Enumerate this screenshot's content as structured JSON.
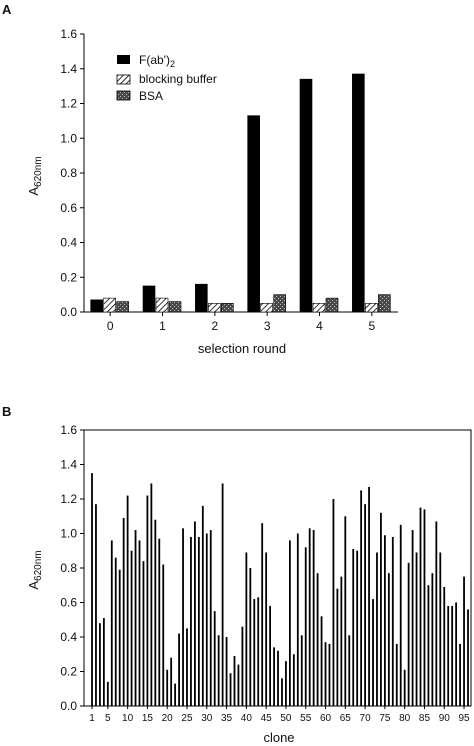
{
  "chart_data": [
    {
      "panel_label": "A",
      "type": "bar",
      "xlabel": "selection round",
      "ylabel_main": "A",
      "ylabel_sub": "620nm",
      "ylim": [
        0,
        1.6
      ],
      "yticks": [
        "0.0",
        "0.2",
        "0.4",
        "0.6",
        "0.8",
        "1.0",
        "1.2",
        "1.4",
        "1.6"
      ],
      "categories": [
        "0",
        "1",
        "2",
        "3",
        "4",
        "5"
      ],
      "legend_position": "top-left",
      "series": [
        {
          "name": "F(ab')2",
          "name_main": "F(ab')",
          "name_sub": "2",
          "fill": "solid-black",
          "values": [
            0.07,
            0.15,
            0.16,
            1.13,
            1.34,
            1.37
          ]
        },
        {
          "name": "blocking buffer",
          "fill": "diagonal-hatch",
          "values": [
            0.08,
            0.08,
            0.05,
            0.05,
            0.05,
            0.05
          ]
        },
        {
          "name": "BSA",
          "fill": "dark-speckle",
          "values": [
            0.06,
            0.06,
            0.05,
            0.1,
            0.08,
            0.1
          ]
        }
      ]
    },
    {
      "panel_label": "B",
      "type": "bar",
      "xlabel": "clone",
      "ylabel_main": "A",
      "ylabel_sub": "620nm",
      "ylim": [
        0,
        1.6
      ],
      "yticks": [
        "0.0",
        "0.2",
        "0.4",
        "0.6",
        "0.8",
        "1.0",
        "1.2",
        "1.4",
        "1.6"
      ],
      "xtick_labels": [
        "1",
        "5",
        "10",
        "15",
        "20",
        "25",
        "30",
        "35",
        "40",
        "45",
        "50",
        "55",
        "60",
        "65",
        "70",
        "75",
        "80",
        "85",
        "90",
        "95"
      ],
      "xtick_positions": [
        1,
        5,
        10,
        15,
        20,
        25,
        30,
        35,
        40,
        45,
        50,
        55,
        60,
        65,
        70,
        75,
        80,
        85,
        90,
        95
      ],
      "clone_count": 96,
      "values": [
        1.35,
        1.17,
        0.48,
        0.51,
        0.14,
        0.96,
        0.86,
        0.79,
        1.09,
        1.22,
        0.9,
        1.02,
        0.96,
        0.84,
        1.22,
        1.29,
        1.08,
        0.97,
        0.82,
        0.21,
        0.28,
        0.13,
        0.42,
        1.03,
        0.45,
        0.98,
        1.07,
        0.98,
        1.16,
        1.0,
        1.02,
        0.55,
        0.41,
        1.29,
        0.4,
        0.19,
        0.29,
        0.24,
        0.46,
        0.89,
        0.8,
        0.62,
        0.63,
        1.06,
        0.89,
        0.58,
        0.34,
        0.32,
        0.16,
        0.26,
        0.96,
        0.3,
        1.0,
        0.41,
        0.92,
        1.03,
        1.02,
        0.77,
        0.52,
        0.37,
        0.36,
        1.2,
        0.68,
        0.75,
        1.1,
        0.41,
        0.91,
        0.9,
        1.25,
        1.17,
        1.27,
        0.62,
        0.89,
        1.12,
        0.99,
        0.77,
        0.98,
        0.36,
        1.05,
        0.21,
        0.83,
        1.02,
        0.89,
        1.15,
        1.14,
        0.7,
        0.77,
        1.07,
        0.89,
        0.69,
        0.58,
        0.58,
        0.6,
        0.36,
        0.75,
        0.56
      ]
    }
  ]
}
